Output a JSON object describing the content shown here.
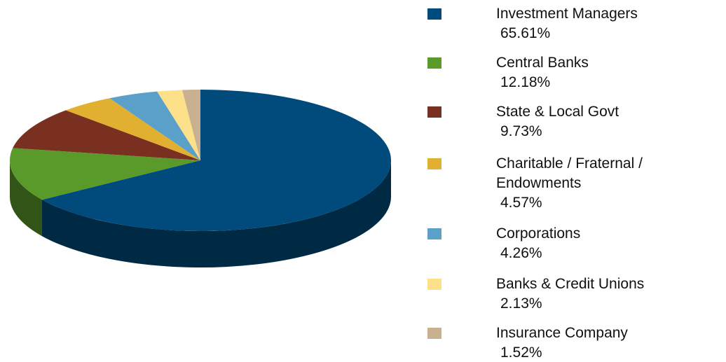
{
  "chart_data": {
    "type": "pie",
    "categories": [
      "Investment Managers",
      "Central Banks",
      "State & Local Govt",
      "Charitable / Fraternal / Endowments",
      "Corporations",
      "Banks & Credit Unions",
      "Insurance Company"
    ],
    "values": [
      65.61,
      12.18,
      9.73,
      4.57,
      4.26,
      2.13,
      1.52
    ],
    "value_labels": [
      "65.61%",
      "12.18%",
      "9.73%",
      "4.57%",
      "4.26%",
      "2.13%",
      "1.52%"
    ],
    "colors": [
      "#004a7c",
      "#5a9a2a",
      "#7a3020",
      "#e2b030",
      "#5aa0c8",
      "#fce08a",
      "#c8b090"
    ]
  }
}
